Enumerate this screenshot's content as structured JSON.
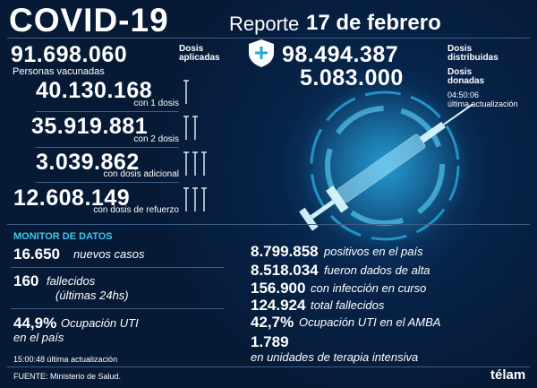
{
  "header": {
    "title": "COVID-19",
    "report_label": "Reporte",
    "date": "17 de febrero"
  },
  "vaccination": {
    "applied": {
      "value": "91.698.060",
      "label": "Dosis aplicadas"
    },
    "distributed": {
      "value": "98.494.387",
      "label": "Dosis distribuidas"
    },
    "donated": {
      "value": "5.083.000",
      "label": "Dosis donadas"
    },
    "update": {
      "time": "04:50:06",
      "label": "última actualización"
    },
    "people_label": "Personas vacunadas",
    "doses": [
      {
        "value": "40.130.168",
        "label": "con 1 dosis"
      },
      {
        "value": "35.919.881",
        "label": "con 2 dosis"
      },
      {
        "value": "3.039.862",
        "label": "con dosis adicional"
      },
      {
        "value": "12.608.149",
        "label": "con dosis de refuerzo"
      }
    ]
  },
  "monitor": {
    "title": "MONITOR DE DATOS",
    "left": [
      {
        "value": "16.650",
        "label": "nuevos casos"
      },
      {
        "value": "160",
        "label": "fallecidos",
        "sublabel": "(últimas 24hs)"
      },
      {
        "value": "44,9%",
        "label": "Ocupación UTI",
        "sublabel": "en el país"
      }
    ],
    "update": "15:00:48 última actualización",
    "right": [
      {
        "value": "8.799.858",
        "label": "positivos en el país"
      },
      {
        "value": "8.518.034",
        "label": "fueron dados de alta"
      },
      {
        "value": "156.900",
        "label": "con infección en curso"
      },
      {
        "value": "124.924",
        "label": "total fallecidos"
      },
      {
        "value": "42,7%",
        "label": "Ocupación UTI en el AMBA"
      },
      {
        "value": "1.789",
        "label": "en unidades de terapia intensiva"
      }
    ]
  },
  "footer": {
    "source": "FUENTE: Ministerio de Salud.",
    "brand": "télam"
  }
}
